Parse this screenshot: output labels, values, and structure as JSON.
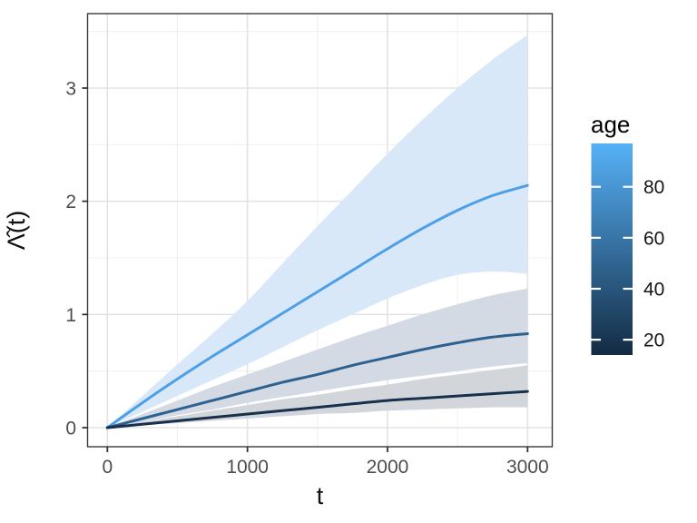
{
  "chart_data": {
    "type": "line",
    "title": "",
    "xlabel": "t",
    "ylabel": "Λ̂(t)",
    "x": [
      0,
      250,
      500,
      750,
      1000,
      1250,
      1500,
      1750,
      2000,
      2250,
      2500,
      2750,
      3000
    ],
    "x_ticks": [
      0,
      1000,
      2000,
      3000
    ],
    "x_minor": [
      500,
      1500,
      2500
    ],
    "y_ticks": [
      0,
      1,
      2,
      3
    ],
    "y_minor": [
      0.5,
      1.5,
      2.5,
      3.5
    ],
    "xlim": [
      -138,
      3176
    ],
    "ylim": [
      -0.17,
      3.66
    ],
    "grid": "major+minor",
    "panel_border": true,
    "legend_position": "right",
    "series": [
      {
        "name": "high age (light blue curve)",
        "color": "#4d9fe8",
        "ribbon_color": "#d9e8f8",
        "values": [
          0,
          0.22,
          0.43,
          0.63,
          0.82,
          1.01,
          1.2,
          1.39,
          1.58,
          1.76,
          1.92,
          2.05,
          2.14
        ],
        "upper": [
          0,
          0.28,
          0.56,
          0.83,
          1.12,
          1.45,
          1.78,
          2.1,
          2.42,
          2.72,
          3.0,
          3.25,
          3.47
        ],
        "lower": [
          0,
          0.14,
          0.28,
          0.42,
          0.56,
          0.71,
          0.86,
          1.0,
          1.14,
          1.26,
          1.35,
          1.38,
          1.36
        ]
      },
      {
        "name": "mid age (medium blue curve)",
        "color": "#2d618f",
        "ribbon_color": "#d3dae3",
        "values": [
          0,
          0.08,
          0.16,
          0.24,
          0.32,
          0.4,
          0.47,
          0.55,
          0.62,
          0.69,
          0.75,
          0.8,
          0.83
        ],
        "upper": [
          0,
          0.12,
          0.24,
          0.36,
          0.47,
          0.58,
          0.69,
          0.8,
          0.9,
          1.0,
          1.09,
          1.17,
          1.23
        ],
        "lower": [
          0,
          0.05,
          0.11,
          0.16,
          0.22,
          0.27,
          0.32,
          0.37,
          0.42,
          0.46,
          0.5,
          0.54,
          0.57
        ]
      },
      {
        "name": "low age (dark navy curve)",
        "color": "#17304d",
        "ribbon_color": "#d2d6db",
        "values": [
          0,
          0.03,
          0.06,
          0.09,
          0.12,
          0.15,
          0.18,
          0.21,
          0.24,
          0.26,
          0.28,
          0.3,
          0.32
        ],
        "upper": [
          0,
          0.05,
          0.1,
          0.15,
          0.2,
          0.25,
          0.29,
          0.34,
          0.38,
          0.43,
          0.47,
          0.51,
          0.55
        ],
        "lower": [
          0,
          0.02,
          0.04,
          0.06,
          0.08,
          0.1,
          0.12,
          0.13,
          0.15,
          0.16,
          0.17,
          0.18,
          0.18
        ]
      }
    ],
    "legend": {
      "title": "age",
      "ticks": [
        80,
        60,
        40,
        20
      ],
      "limits": [
        14,
        97
      ],
      "gradient_low": "#132B43",
      "gradient_high": "#56B1F7"
    },
    "colors": {
      "grid_major": "#e3e3e3",
      "grid_minor": "#f0f0f0",
      "panel_border": "#3a3a3a",
      "axis_tick": "#333333"
    }
  }
}
